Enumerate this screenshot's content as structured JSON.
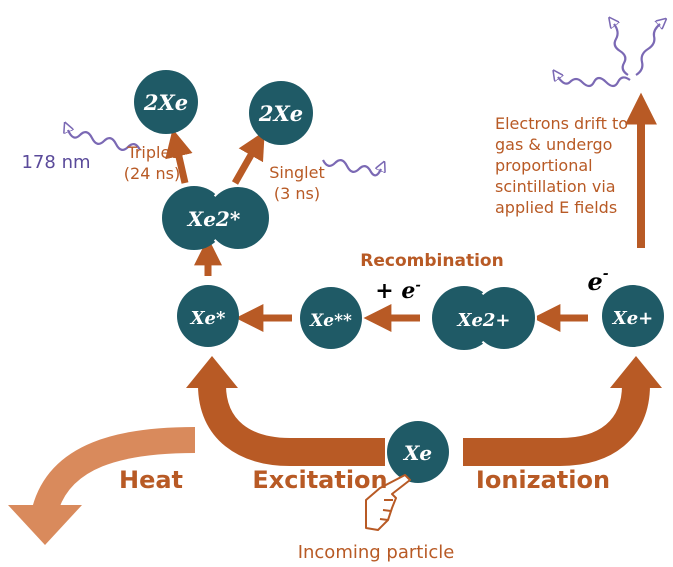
{
  "colors": {
    "node": "#1f5a66",
    "arrow": "#b85a25",
    "arrow_light": "#d98a5c",
    "photon": "#7b69b4",
    "text_brown": "#b85a25",
    "text_white": "#ffffff"
  },
  "nodes": {
    "xe_ground": "Xe",
    "xe_excited": "Xe*",
    "xe_doubly_excited": "Xe**",
    "xe2_excimer": "Xe2*",
    "xe2_ion": "Xe2+",
    "xe_ion": "Xe+",
    "two_xe_triplet": "2Xe",
    "two_xe_singlet": "2Xe"
  },
  "labels": {
    "heat": "Heat",
    "excitation": "Excitation",
    "ionization": "Ionization",
    "incoming_particle": "Incoming particle",
    "recombination": "Recombination",
    "plus_e": "+ e",
    "e_minus": "e",
    "triplet": "Triplet",
    "triplet_time": "(24 ns)",
    "singlet": "Singlet",
    "singlet_time": "(3 ns)",
    "wavelength": "178 nm",
    "drift_line1": "Electrons drift to",
    "drift_line2": "gas & undergo",
    "drift_line3": "proportional",
    "drift_line4": "scintillation via",
    "drift_line5": "applied E fields"
  },
  "icons": {
    "incoming": "pointing-hand-icon",
    "photon": "wavy-photon-icon"
  }
}
